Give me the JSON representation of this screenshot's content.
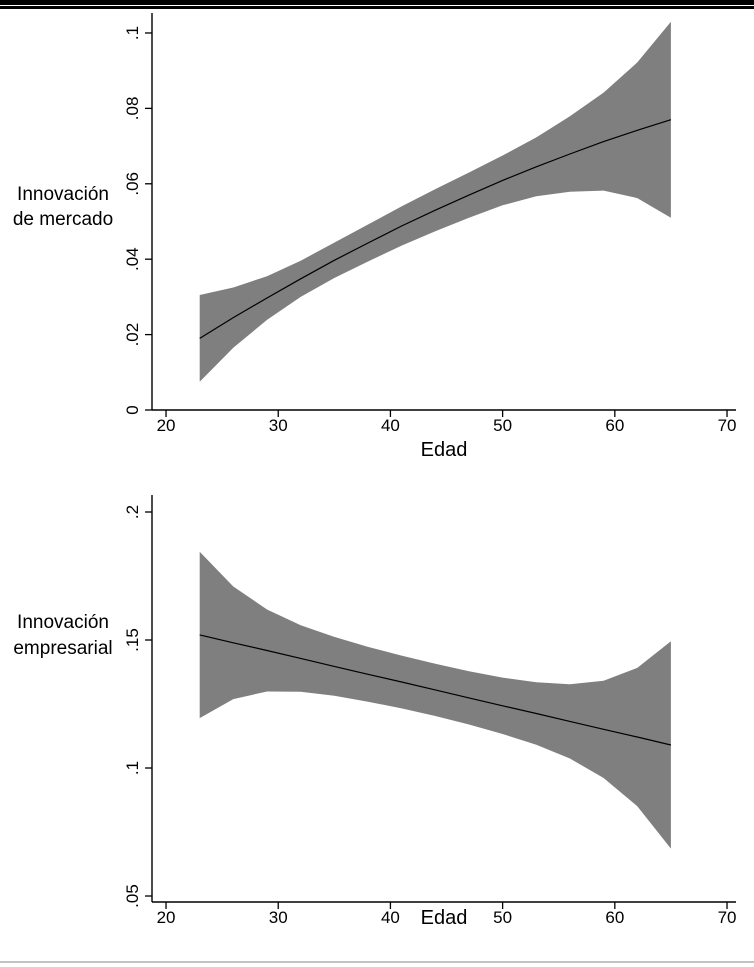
{
  "page": {
    "background": "#ffffff",
    "top_bar_color": "#000000",
    "bottom_rule_color": "#c2c2c2"
  },
  "chart_data": [
    {
      "type": "line",
      "name": "market-innovation",
      "ylabel_lines": [
        "Innovación",
        "de mercado"
      ],
      "xlabel": "Edad",
      "x_ticks": [
        20,
        30,
        40,
        50,
        60,
        70
      ],
      "x_tick_labels": [
        "20",
        "30",
        "40",
        "50",
        "60",
        "70"
      ],
      "y_ticks": [
        0,
        0.02,
        0.04,
        0.06,
        0.08,
        0.1
      ],
      "y_tick_labels": [
        "0",
        ".02",
        ".04",
        ".06",
        ".08",
        ".1"
      ],
      "xlim": [
        18.75,
        70.8
      ],
      "ylim": [
        0,
        0.1053
      ],
      "grid": false,
      "legend": "none",
      "band_color": "#7f7f7f",
      "line_color": "#000000",
      "x": [
        23,
        26,
        29,
        32,
        35,
        38,
        41,
        44,
        47,
        50,
        53,
        56,
        59,
        62,
        65
      ],
      "fit": [
        0.019,
        0.0245,
        0.0297,
        0.0348,
        0.0397,
        0.0443,
        0.0488,
        0.053,
        0.057,
        0.0609,
        0.0645,
        0.0679,
        0.0712,
        0.0742,
        0.077
      ],
      "upper": [
        0.0305,
        0.0325,
        0.0355,
        0.0396,
        0.0444,
        0.0492,
        0.054,
        0.0586,
        0.063,
        0.0675,
        0.0723,
        0.0779,
        0.0842,
        0.0922,
        0.103
      ],
      "lower": [
        0.0075,
        0.0165,
        0.0239,
        0.03,
        0.035,
        0.0394,
        0.0436,
        0.0474,
        0.051,
        0.0543,
        0.0567,
        0.0579,
        0.0582,
        0.0562,
        0.051
      ]
    },
    {
      "type": "line",
      "name": "business-innovation",
      "ylabel_lines": [
        "Innovación",
        "empresarial"
      ],
      "xlabel": "Edad",
      "x_ticks": [
        20,
        30,
        40,
        50,
        60,
        70
      ],
      "x_tick_labels": [
        "20",
        "30",
        "40",
        "50",
        "60",
        "70"
      ],
      "y_ticks": [
        0.05,
        0.1,
        0.15,
        0.2
      ],
      "y_tick_labels": [
        ".05",
        ".1",
        ".15",
        ".2"
      ],
      "xlim": [
        18.75,
        70.8
      ],
      "ylim": [
        0.04766,
        0.20664
      ],
      "grid": false,
      "legend": "none",
      "band_color": "#7f7f7f",
      "line_color": "#000000",
      "x": [
        23,
        26,
        29,
        32,
        35,
        38,
        41,
        44,
        47,
        50,
        53,
        56,
        59,
        62,
        65
      ],
      "fit": [
        0.152,
        0.1489,
        0.1459,
        0.1428,
        0.1397,
        0.1366,
        0.1336,
        0.1305,
        0.1274,
        0.1243,
        0.1213,
        0.1182,
        0.1151,
        0.1121,
        0.109
      ],
      "upper": [
        0.1845,
        0.1709,
        0.1619,
        0.1558,
        0.1512,
        0.1473,
        0.1439,
        0.1407,
        0.1378,
        0.1353,
        0.1335,
        0.1327,
        0.1341,
        0.1391,
        0.1495
      ],
      "lower": [
        0.1195,
        0.1269,
        0.1299,
        0.1298,
        0.1282,
        0.1259,
        0.1233,
        0.1203,
        0.117,
        0.1133,
        0.1091,
        0.1037,
        0.0961,
        0.0851,
        0.0685
      ]
    }
  ]
}
